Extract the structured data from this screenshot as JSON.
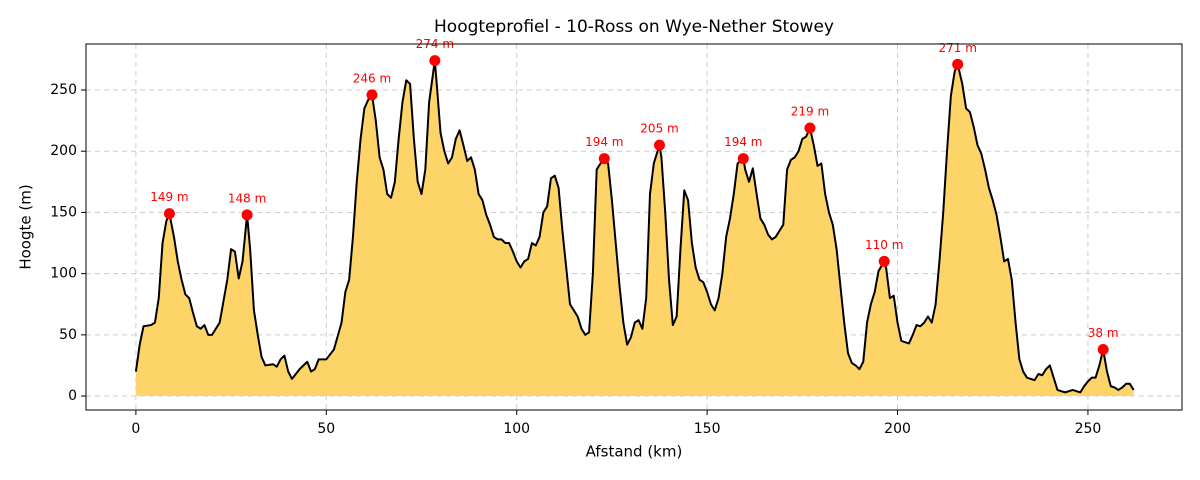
{
  "chart_data": {
    "type": "area",
    "title": "Hoogteprofiel - 10-Ross on Wye-Nether Stowey",
    "xlabel": "Afstand (km)",
    "ylabel": "Hoogte (m)",
    "x": [
      0,
      1,
      2,
      4,
      5,
      6,
      7,
      8,
      8.8,
      10,
      11,
      12,
      13,
      14,
      15,
      16,
      17,
      18,
      19,
      20,
      22,
      24,
      25,
      26,
      27,
      28,
      29.2,
      30,
      31,
      32,
      33,
      34,
      36,
      37,
      38,
      39,
      40,
      41,
      43,
      45,
      46,
      47,
      48,
      50,
      52,
      54,
      55,
      56,
      57,
      58,
      59,
      60,
      61,
      62,
      63,
      64,
      65,
      66,
      67,
      68,
      69,
      70,
      71,
      72,
      73,
      74,
      75,
      76,
      77,
      78.5,
      79,
      80,
      81,
      82,
      83,
      84,
      85,
      86,
      87,
      88,
      89,
      90,
      91,
      92,
      93,
      94,
      95,
      96,
      97,
      98,
      99,
      100,
      101,
      102,
      103,
      104,
      105,
      106,
      107,
      108,
      109,
      110,
      111,
      112,
      113,
      114,
      115,
      116,
      117,
      118,
      119,
      120,
      121,
      122,
      123,
      124,
      125,
      126,
      127,
      128,
      129,
      130,
      131,
      132,
      133,
      134,
      135,
      136,
      137.5,
      138,
      139,
      140,
      141,
      142,
      143,
      144,
      145,
      146,
      147,
      148,
      149,
      150,
      151,
      152,
      153,
      154,
      155,
      156,
      157,
      158,
      159.5,
      160,
      161,
      162,
      163,
      164,
      165,
      166,
      167,
      168,
      169,
      170,
      171,
      172,
      173,
      174,
      175,
      176,
      177,
      178,
      179,
      180,
      181,
      182,
      183,
      184,
      185,
      186,
      187,
      188,
      189,
      190,
      191,
      192,
      193,
      194,
      195,
      196.5,
      197,
      198,
      199,
      200,
      201,
      202,
      203,
      204,
      205,
      206,
      207,
      208,
      209,
      210,
      211,
      212,
      213,
      214,
      215,
      215.8,
      217,
      218,
      219,
      220,
      221,
      222,
      223,
      224,
      225,
      226,
      227,
      228,
      229,
      230,
      231,
      232,
      233,
      234,
      235,
      236,
      237,
      238,
      239,
      240,
      241,
      242,
      243,
      244,
      245,
      246,
      247,
      248,
      249,
      250,
      251,
      252,
      253,
      254,
      255,
      256,
      257,
      258,
      259,
      260,
      261,
      262
    ],
    "values": [
      20,
      42,
      57,
      58,
      60,
      80,
      125,
      143,
      149,
      130,
      110,
      95,
      83,
      80,
      68,
      57,
      55,
      58,
      50,
      50,
      60,
      95,
      120,
      118,
      96,
      110,
      148,
      120,
      70,
      50,
      32,
      25,
      26,
      24,
      30,
      33,
      20,
      14,
      22,
      28,
      20,
      22,
      30,
      30,
      38,
      60,
      85,
      95,
      130,
      175,
      210,
      235,
      242,
      246,
      225,
      195,
      185,
      165,
      162,
      175,
      210,
      240,
      258,
      255,
      210,
      175,
      165,
      185,
      240,
      274,
      255,
      215,
      200,
      190,
      195,
      210,
      217,
      205,
      192,
      195,
      185,
      165,
      160,
      148,
      140,
      130,
      128,
      128,
      125,
      125,
      118,
      110,
      105,
      110,
      112,
      125,
      123,
      130,
      150,
      155,
      178,
      180,
      170,
      135,
      105,
      75,
      70,
      65,
      55,
      50,
      52,
      100,
      185,
      190,
      194,
      190,
      160,
      125,
      90,
      60,
      42,
      48,
      60,
      62,
      55,
      80,
      165,
      190,
      205,
      195,
      150,
      95,
      58,
      65,
      120,
      168,
      160,
      125,
      105,
      95,
      93,
      85,
      75,
      70,
      80,
      100,
      130,
      145,
      165,
      190,
      194,
      185,
      175,
      186,
      165,
      145,
      140,
      132,
      128,
      130,
      135,
      140,
      185,
      193,
      195,
      200,
      210,
      212,
      219,
      205,
      188,
      190,
      165,
      150,
      140,
      120,
      90,
      60,
      35,
      27,
      25,
      22,
      28,
      60,
      75,
      85,
      102,
      110,
      105,
      80,
      82,
      60,
      45,
      44,
      43,
      50,
      58,
      57,
      60,
      65,
      60,
      75,
      110,
      150,
      200,
      245,
      265,
      271,
      255,
      235,
      232,
      220,
      205,
      198,
      185,
      170,
      160,
      148,
      130,
      110,
      112,
      95,
      60,
      30,
      20,
      15,
      14,
      13,
      18,
      17,
      22,
      25,
      15,
      5,
      4,
      3,
      4,
      5,
      4,
      3,
      8,
      12,
      15,
      15,
      25,
      38,
      20,
      8,
      7,
      5,
      7,
      10,
      10,
      5
    ],
    "color": "#fcd468",
    "line_color": "#000000",
    "peaks": {
      "x": [
        8.8,
        29.2,
        62,
        78.5,
        123,
        137.5,
        159.5,
        177,
        196.5,
        215.8,
        254
      ],
      "values": [
        149,
        148,
        246,
        274,
        194,
        205,
        194,
        219,
        110,
        271,
        38
      ],
      "value_labels": [
        "149 m",
        "148 m",
        "246 m",
        "274 m",
        "194 m",
        "205 m",
        "194 m",
        "219 m",
        "110 m",
        "271 m",
        "38 m"
      ],
      "color": "#ff0000"
    },
    "xlim": [
      -13.1,
      274.7
    ],
    "ylim": [
      -11.4,
      287.6
    ],
    "xticks": [
      0,
      50,
      100,
      150,
      200,
      250
    ],
    "yticks": [
      0,
      50,
      100,
      150,
      200,
      250
    ],
    "grid": true
  }
}
